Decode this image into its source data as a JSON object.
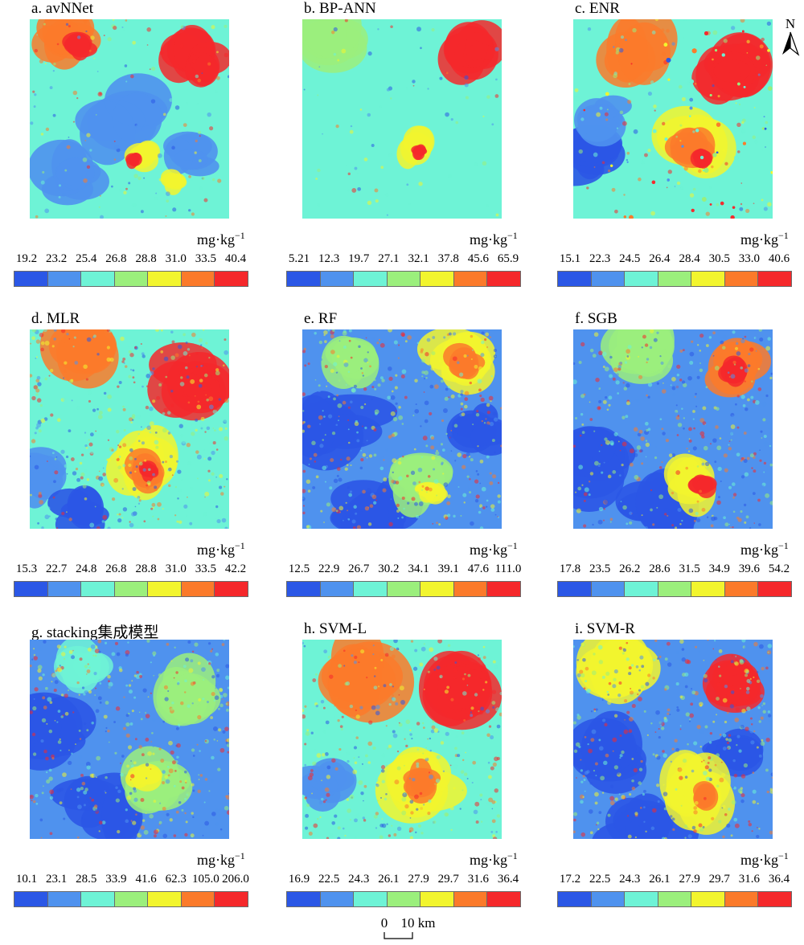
{
  "colors": [
    "#2b57e6",
    "#4f92ee",
    "#6ef3d6",
    "#9bef7c",
    "#f2f52e",
    "#fb7a2a",
    "#f5282b"
  ],
  "panels": [
    {
      "label": "a. avNNet",
      "unit": "mg·kg",
      "unit_sup": "−1",
      "ticks": [
        "19.2",
        "23.2",
        "25.4",
        "26.8",
        "28.8",
        "31.0",
        "33.5",
        "40.4"
      ]
    },
    {
      "label": "b. BP-ANN",
      "unit": "mg·kg",
      "unit_sup": "−1",
      "ticks": [
        "5.21",
        "12.3",
        "19.7",
        "27.1",
        "32.1",
        "37.8",
        "45.6",
        "65.9"
      ]
    },
    {
      "label": "c. ENR",
      "unit": "mg·kg",
      "unit_sup": "−1",
      "ticks": [
        "15.1",
        "22.3",
        "24.5",
        "26.4",
        "28.4",
        "30.5",
        "33.0",
        "40.6"
      ]
    },
    {
      "label": "d. MLR",
      "unit": "mg·kg",
      "unit_sup": "−1",
      "ticks": [
        "15.3",
        "22.7",
        "24.8",
        "26.8",
        "28.8",
        "31.0",
        "33.5",
        "42.2"
      ]
    },
    {
      "label": "e. RF",
      "unit": "mg·kg",
      "unit_sup": "−1",
      "ticks": [
        "12.5",
        "22.9",
        "26.7",
        "30.2",
        "34.1",
        "39.1",
        "47.6",
        "111.0"
      ]
    },
    {
      "label": "f. SGB",
      "unit": "mg·kg",
      "unit_sup": "−1",
      "ticks": [
        "17.8",
        "23.5",
        "26.2",
        "28.6",
        "31.5",
        "34.9",
        "39.6",
        "54.2"
      ]
    },
    {
      "label": "g. stacking集成模型",
      "unit": "mg·kg",
      "unit_sup": "−1",
      "ticks": [
        "10.1",
        "23.1",
        "28.5",
        "33.9",
        "41.6",
        "62.3",
        "105.0",
        "206.0"
      ]
    },
    {
      "label": "h. SVM-L",
      "unit": "mg·kg",
      "unit_sup": "−1",
      "ticks": [
        "16.9",
        "22.5",
        "24.3",
        "26.1",
        "27.9",
        "29.7",
        "31.6",
        "36.4"
      ]
    },
    {
      "label": "i. SVM-R",
      "unit": "mg·kg",
      "unit_sup": "−1",
      "ticks": [
        "17.2",
        "22.5",
        "24.3",
        "26.1",
        "27.9",
        "29.7",
        "31.6",
        "36.4"
      ]
    }
  ],
  "north_label": "N",
  "scale_bar": {
    "start": "0",
    "end": "10 km"
  }
}
